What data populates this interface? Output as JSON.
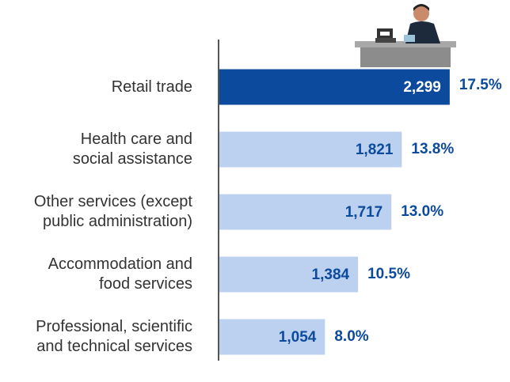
{
  "chart_data": {
    "type": "bar",
    "orientation": "horizontal",
    "categories": [
      [
        "Retail trade"
      ],
      [
        "Health care and",
        "social assistance"
      ],
      [
        "Other services (except",
        "public administration)"
      ],
      [
        "Accommodation and",
        "food services"
      ],
      [
        "Professional, scientific",
        "and technical services"
      ]
    ],
    "values": [
      2299,
      1821,
      1717,
      1384,
      1054
    ],
    "value_labels": [
      "2,299",
      "1,821",
      "1,717",
      "1,384",
      "1,054"
    ],
    "percent_values": [
      17.5,
      13.8,
      13.0,
      10.5,
      8.0
    ],
    "percent_labels": [
      "17.5%",
      "13.8%",
      "13.0%",
      "10.5%",
      "8.0%"
    ],
    "colors": [
      "#0b4a9c",
      "#bcd0ef",
      "#bcd0ef",
      "#bcd0ef",
      "#bcd0ef"
    ],
    "xlim": [
      0,
      2300
    ]
  }
}
